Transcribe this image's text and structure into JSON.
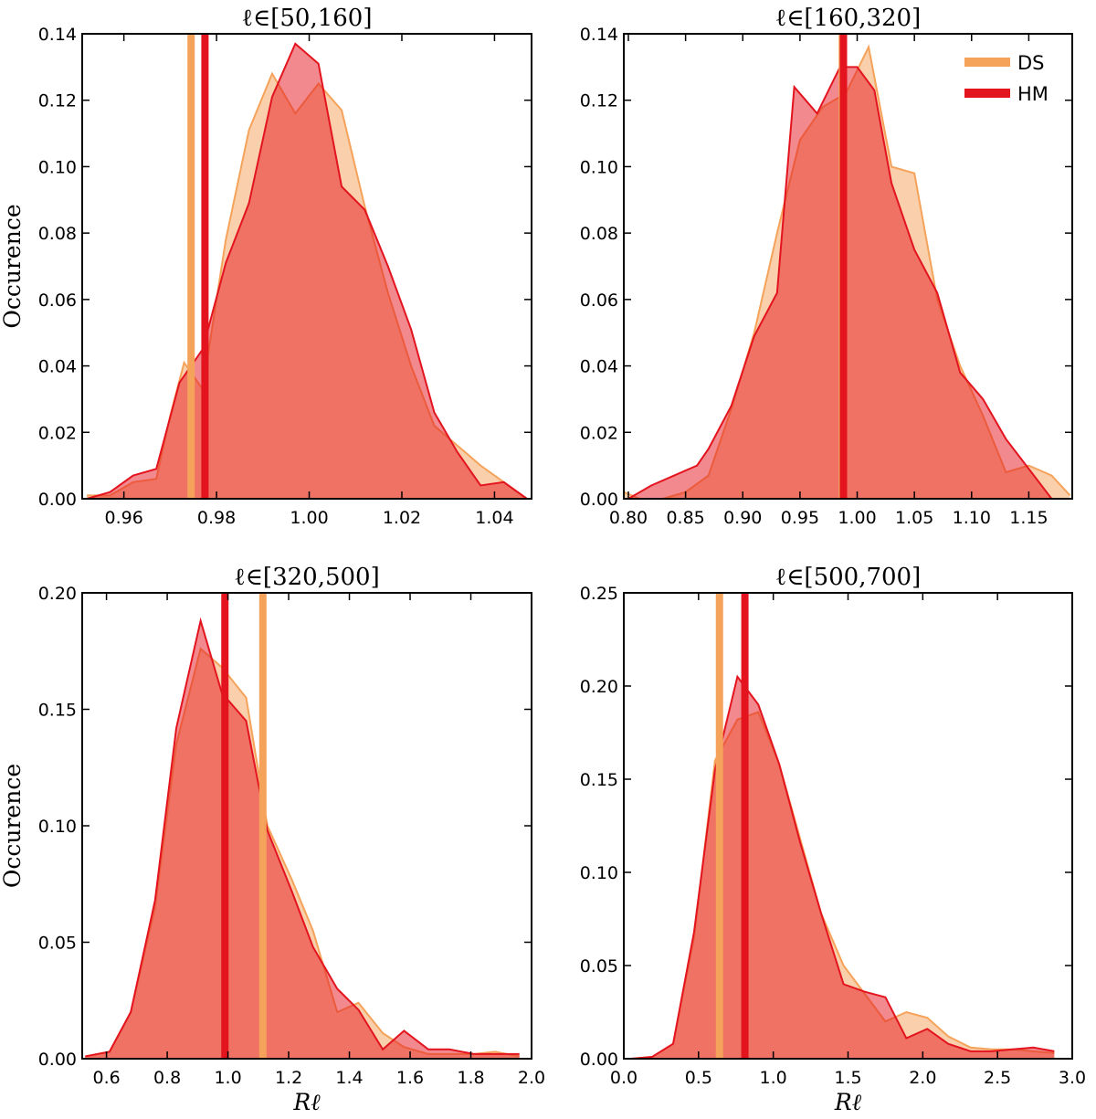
{
  "chart_data": [
    {
      "type": "area",
      "title": "ℓ∈[50,160]",
      "xlabel": "",
      "ylabel": "Occurence",
      "xlim": [
        0.951,
        1.048
      ],
      "ylim": [
        0,
        0.14
      ],
      "xticks": [
        0.96,
        0.98,
        1.0,
        1.02,
        1.04
      ],
      "xtick_labels": [
        "0.96",
        "0.98",
        "1.00",
        "1.02",
        "1.04"
      ],
      "yticks": [
        0,
        0.02,
        0.04,
        0.06,
        0.08,
        0.1,
        0.12,
        0.14
      ],
      "ytick_labels": [
        "0.00",
        "0.02",
        "0.04",
        "0.06",
        "0.08",
        "0.10",
        "0.12",
        "0.14"
      ],
      "series": [
        {
          "name": "DS",
          "color": "#f5a25a",
          "x": [
            0.952,
            0.957,
            0.962,
            0.967,
            0.97,
            0.973,
            0.977,
            0.982,
            0.987,
            0.992,
            0.997,
            1.002,
            1.007,
            1.012,
            1.017,
            1.022,
            1.027,
            1.032,
            1.037,
            1.042,
            1.047
          ],
          "y": [
            0.001,
            0.001,
            0.005,
            0.006,
            0.025,
            0.041,
            0.033,
            0.078,
            0.111,
            0.128,
            0.116,
            0.125,
            0.117,
            0.088,
            0.062,
            0.04,
            0.022,
            0.016,
            0.01,
            0.005,
            0.0
          ]
        },
        {
          "name": "HM",
          "color": "#e3141e",
          "x": [
            0.952,
            0.957,
            0.962,
            0.967,
            0.972,
            0.977,
            0.982,
            0.987,
            0.992,
            0.997,
            1.002,
            1.007,
            1.012,
            1.017,
            1.022,
            1.027,
            1.032,
            1.037,
            1.042,
            1.047
          ],
          "y": [
            0.0,
            0.002,
            0.007,
            0.009,
            0.035,
            0.045,
            0.071,
            0.089,
            0.121,
            0.137,
            0.131,
            0.094,
            0.087,
            0.07,
            0.051,
            0.026,
            0.014,
            0.004,
            0.005,
            0.0
          ]
        }
      ],
      "vlines": [
        {
          "series": "DS",
          "x": 0.9745
        },
        {
          "series": "HM",
          "x": 0.9775
        }
      ],
      "legend": null
    },
    {
      "type": "area",
      "title": "ℓ∈[160,320]",
      "xlabel": "",
      "ylabel": "",
      "xlim": [
        0.796,
        1.188
      ],
      "ylim": [
        0,
        0.14
      ],
      "xticks": [
        0.8,
        0.85,
        0.9,
        0.95,
        1.0,
        1.05,
        1.1,
        1.15
      ],
      "xtick_labels": [
        "0.80",
        "0.85",
        "0.90",
        "0.95",
        "1.00",
        "1.05",
        "1.10",
        "1.15"
      ],
      "yticks": [
        0,
        0.02,
        0.04,
        0.06,
        0.08,
        0.1,
        0.12,
        0.14
      ],
      "ytick_labels": [
        "0.00",
        "0.02",
        "0.04",
        "0.06",
        "0.08",
        "0.10",
        "0.12",
        "0.14"
      ],
      "series": [
        {
          "name": "DS",
          "color": "#f5a25a",
          "x": [
            0.796,
            0.81,
            0.83,
            0.85,
            0.87,
            0.89,
            0.91,
            0.93,
            0.95,
            0.97,
            0.99,
            1.01,
            1.03,
            1.05,
            1.07,
            1.09,
            1.11,
            1.13,
            1.15,
            1.17,
            1.186
          ],
          "y": [
            0.002,
            0.0,
            0.0,
            0.002,
            0.007,
            0.027,
            0.05,
            0.08,
            0.108,
            0.118,
            0.122,
            0.136,
            0.1,
            0.098,
            0.06,
            0.04,
            0.025,
            0.008,
            0.01,
            0.007,
            0.001
          ]
        },
        {
          "name": "HM",
          "color": "#e3141e",
          "x": [
            0.8,
            0.82,
            0.84,
            0.86,
            0.87,
            0.89,
            0.91,
            0.93,
            0.945,
            0.965,
            0.985,
            1.0,
            1.015,
            1.03,
            1.05,
            1.07,
            1.09,
            1.11,
            1.13,
            1.15,
            1.17
          ],
          "y": [
            0.0,
            0.004,
            0.007,
            0.01,
            0.015,
            0.028,
            0.049,
            0.062,
            0.124,
            0.116,
            0.13,
            0.13,
            0.123,
            0.095,
            0.075,
            0.062,
            0.038,
            0.03,
            0.018,
            0.009,
            0.0
          ]
        }
      ],
      "vlines": [
        {
          "series": "DS",
          "x": 0.987
        },
        {
          "series": "HM",
          "x": 0.988
        }
      ],
      "legend": {
        "loc": "upper right",
        "entries": [
          "DS",
          "HM"
        ]
      }
    },
    {
      "type": "area",
      "title": "ℓ∈[320,500]",
      "xlabel": "Rℓ",
      "ylabel": "Occurence",
      "xlim": [
        0.52,
        2.0
      ],
      "ylim": [
        0,
        0.2
      ],
      "xticks": [
        0.6,
        0.8,
        1.0,
        1.2,
        1.4,
        1.6,
        1.8,
        2.0
      ],
      "xtick_labels": [
        "0.6",
        "0.8",
        "1.0",
        "1.2",
        "1.4",
        "1.6",
        "1.8",
        "2.0"
      ],
      "yticks": [
        0,
        0.05,
        0.1,
        0.15,
        0.2
      ],
      "ytick_labels": [
        "0.00",
        "0.05",
        "0.10",
        "0.15",
        "0.20"
      ],
      "series": [
        {
          "name": "DS",
          "color": "#f5a25a",
          "x": [
            0.53,
            0.61,
            0.68,
            0.76,
            0.83,
            0.91,
            0.98,
            1.06,
            1.13,
            1.21,
            1.28,
            1.36,
            1.43,
            1.51,
            1.58,
            1.66,
            1.73,
            1.81,
            1.88,
            1.96
          ],
          "y": [
            0.001,
            0.003,
            0.02,
            0.065,
            0.135,
            0.176,
            0.168,
            0.155,
            0.1,
            0.077,
            0.055,
            0.02,
            0.024,
            0.011,
            0.005,
            0.002,
            0.002,
            0.002,
            0.003,
            0.001
          ]
        },
        {
          "name": "HM",
          "color": "#e3141e",
          "x": [
            0.53,
            0.61,
            0.68,
            0.76,
            0.83,
            0.91,
            0.98,
            1.06,
            1.13,
            1.21,
            1.28,
            1.36,
            1.43,
            1.51,
            1.58,
            1.66,
            1.73,
            1.81,
            1.88,
            1.96
          ],
          "y": [
            0.001,
            0.003,
            0.02,
            0.068,
            0.142,
            0.188,
            0.157,
            0.145,
            0.098,
            0.072,
            0.048,
            0.03,
            0.021,
            0.004,
            0.012,
            0.004,
            0.004,
            0.002,
            0.002,
            0.002
          ]
        }
      ],
      "vlines": [
        {
          "series": "DS",
          "x": 1.115
        },
        {
          "series": "HM",
          "x": 0.99
        }
      ],
      "legend": null
    },
    {
      "type": "area",
      "title": "ℓ∈[500,700]",
      "xlabel": "Rℓ",
      "ylabel": "",
      "xlim": [
        0.0,
        3.0
      ],
      "ylim": [
        0,
        0.25
      ],
      "xticks": [
        0.0,
        0.5,
        1.0,
        1.5,
        2.0,
        2.5,
        3.0
      ],
      "xtick_labels": [
        "0.0",
        "0.5",
        "1.0",
        "1.5",
        "2.0",
        "2.5",
        "3.0"
      ],
      "yticks": [
        0,
        0.05,
        0.1,
        0.15,
        0.2,
        0.25
      ],
      "ytick_labels": [
        "0.00",
        "0.05",
        "0.10",
        "0.15",
        "0.20",
        "0.25"
      ],
      "series": [
        {
          "name": "DS",
          "color": "#f5a25a",
          "x": [
            0.05,
            0.19,
            0.33,
            0.47,
            0.61,
            0.76,
            0.9,
            1.04,
            1.18,
            1.32,
            1.47,
            1.61,
            1.75,
            1.89,
            2.03,
            2.17,
            2.32,
            2.46,
            2.6,
            2.74,
            2.88
          ],
          "y": [
            0.0,
            0.001,
            0.008,
            0.065,
            0.16,
            0.182,
            0.186,
            0.158,
            0.118,
            0.078,
            0.05,
            0.035,
            0.02,
            0.025,
            0.022,
            0.012,
            0.006,
            0.005,
            0.005,
            0.004,
            0.003
          ]
        },
        {
          "name": "HM",
          "color": "#e3141e",
          "x": [
            0.05,
            0.19,
            0.33,
            0.47,
            0.61,
            0.76,
            0.9,
            1.04,
            1.18,
            1.32,
            1.47,
            1.61,
            1.75,
            1.89,
            2.03,
            2.17,
            2.32,
            2.46,
            2.6,
            2.74,
            2.88
          ],
          "y": [
            0.0,
            0.001,
            0.008,
            0.068,
            0.155,
            0.205,
            0.19,
            0.158,
            0.116,
            0.078,
            0.04,
            0.036,
            0.033,
            0.011,
            0.016,
            0.008,
            0.004,
            0.004,
            0.005,
            0.006,
            0.004
          ]
        }
      ],
      "vlines": [
        {
          "series": "DS",
          "x": 0.64
        },
        {
          "series": "HM",
          "x": 0.81
        }
      ],
      "legend": null
    }
  ],
  "style": {
    "ds_fill": "#f5a25a",
    "hm_fill": "#e3141e",
    "ds_line": "#f5a25a",
    "hm_line": "#e3141e",
    "fill_opacity": 0.5,
    "axis_color": "#000000"
  }
}
